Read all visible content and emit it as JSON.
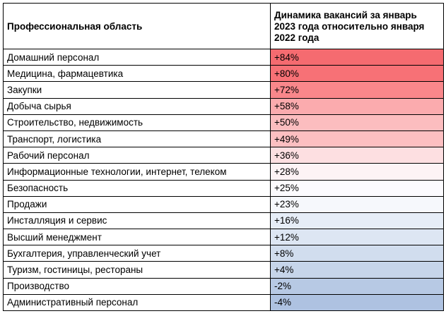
{
  "table": {
    "headers": [
      "Профессиональная область",
      "Динамика вакансий за январь 2023 года относительно января 2022 года"
    ],
    "rows": [
      {
        "area": "Домашний персонал",
        "change": "+84%",
        "color": "#f56b70"
      },
      {
        "area": "Медицина, фармацевтика",
        "change": "+80%",
        "color": "#f77176"
      },
      {
        "area": "Закупки",
        "change": "+72%",
        "color": "#f9878b"
      },
      {
        "area": "Добыча сырья",
        "change": "+58%",
        "color": "#fbabae"
      },
      {
        "area": "Строительство, недвижимость",
        "change": "+50%",
        "color": "#fcbdbf"
      },
      {
        "area": "Транспорт, логистика",
        "change": "+49%",
        "color": "#fcbfc1"
      },
      {
        "area": "Рабочий персонал",
        "change": "+36%",
        "color": "#fddfe1"
      },
      {
        "area": "Информационные технологии, интернет, телеком",
        "change": "+28%",
        "color": "#fdf3f5"
      },
      {
        "area": "Безопасность",
        "change": "+25%",
        "color": "#fcfbfe"
      },
      {
        "area": "Продажи",
        "change": "+23%",
        "color": "#f6f8fc"
      },
      {
        "area": "Инсталляция и сервис",
        "change": "+16%",
        "color": "#e6edf7"
      },
      {
        "area": "Высший менеджмент",
        "change": "+12%",
        "color": "#dde6f3"
      },
      {
        "area": "Бухгалтерия, управленческий учет",
        "change": "+8%",
        "color": "#d1ddee"
      },
      {
        "area": "Туризм, гостиницы, рестораны",
        "change": "+4%",
        "color": "#c6d5ea"
      },
      {
        "area": "Производство",
        "change": "-2%",
        "color": "#b7c9e4"
      },
      {
        "area": "Административный персонал",
        "change": "-4%",
        "color": "#aec2e1"
      }
    ]
  }
}
